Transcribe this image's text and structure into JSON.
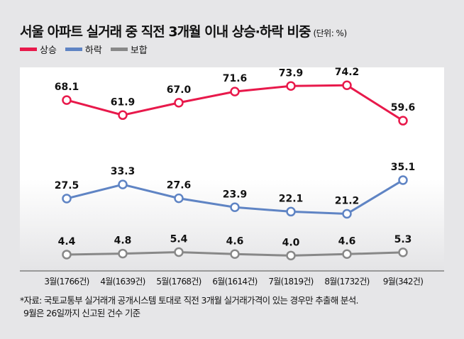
{
  "chart_data": {
    "type": "line",
    "title": "서울 아파트 실거래 중 직전 3개월 이내 상승·하락 비중",
    "unit": "(단위: %)",
    "categories": [
      "3월(1766건)",
      "4월(1639건)",
      "5월(1768건)",
      "6월(1614건)",
      "7월(1819건)",
      "8월(1732건)",
      "9월(342건)"
    ],
    "series": [
      {
        "name": "상승",
        "color": "#e8194b",
        "values": [
          68.1,
          61.9,
          67.0,
          71.6,
          73.9,
          74.2,
          59.6
        ]
      },
      {
        "name": "하락",
        "color": "#5f84c4",
        "values": [
          27.5,
          33.3,
          27.6,
          23.9,
          22.1,
          21.2,
          35.1
        ]
      },
      {
        "name": "보합",
        "color": "#888888",
        "values": [
          4.4,
          4.8,
          5.4,
          4.6,
          4.0,
          4.6,
          5.3
        ]
      }
    ],
    "ylim": [
      0,
      80
    ],
    "grid": false,
    "legend": "top-left"
  },
  "note": [
    "*자료: 국토교통부 실거래개 공개시스템 토대로 직전 3개월 실거래가격이 있는 경우만 추출해 분석.",
    "9월은 26일까지 신고된 건수 기준"
  ]
}
